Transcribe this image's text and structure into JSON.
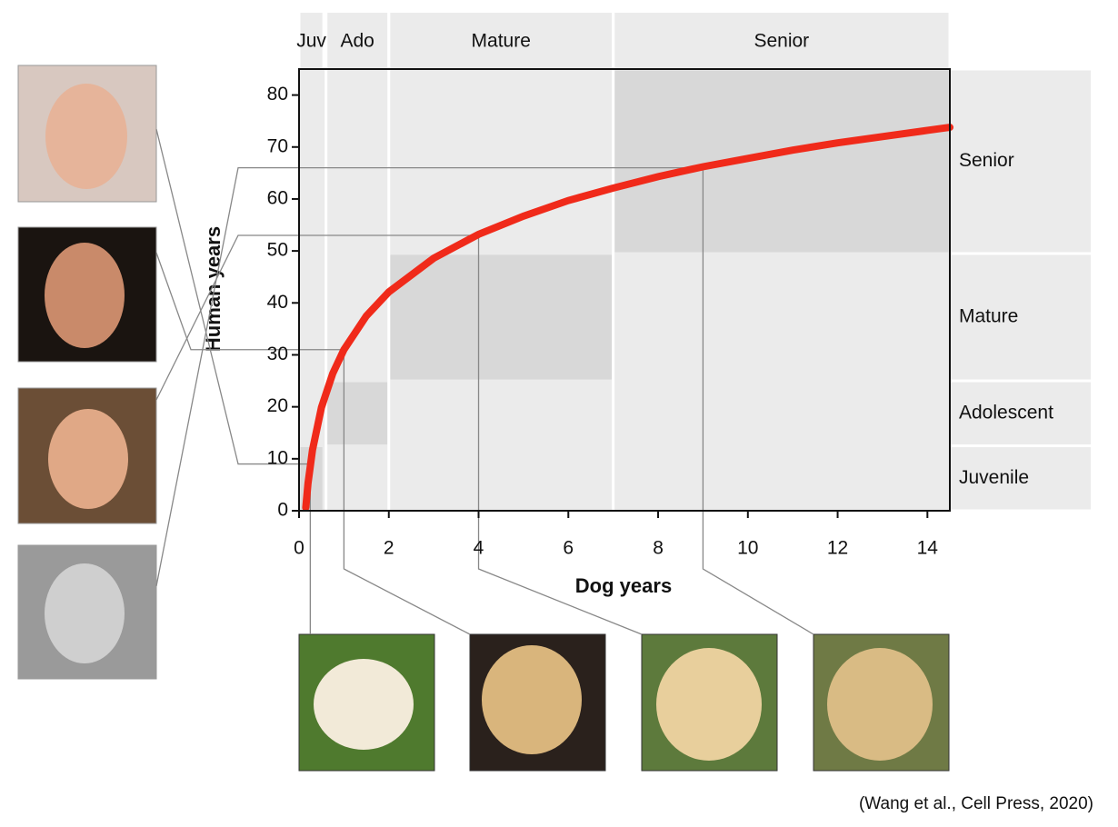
{
  "chart_data": {
    "type": "line",
    "x_label": "Dog years",
    "y_label": "Human years",
    "caption": "(Wang et al., Cell Press, 2020)",
    "x": [
      0.15,
      0.2,
      0.3,
      0.5,
      0.75,
      1,
      1.5,
      2,
      3,
      4,
      5,
      6,
      7,
      8,
      9,
      10,
      11,
      12,
      13,
      14,
      14.5
    ],
    "y": [
      0.6,
      5.3,
      11.7,
      19.9,
      26.4,
      31,
      37.5,
      42.1,
      48.6,
      53.2,
      56.7,
      59.7,
      62.1,
      64.3,
      66.2,
      67.8,
      69.4,
      70.8,
      72.0,
      73.2,
      73.8
    ],
    "color": "#f02a1a",
    "xlim": [
      0,
      14.5
    ],
    "ylim": [
      0,
      85
    ],
    "xticks": [
      0,
      2,
      4,
      6,
      8,
      10,
      12,
      14
    ],
    "yticks": [
      0,
      10,
      20,
      30,
      40,
      50,
      60,
      70,
      80
    ],
    "stages": [
      {
        "short": "Juv",
        "name": "Juvenile",
        "dog_years": [
          0,
          0.55
        ],
        "human_years": [
          0,
          12.5
        ]
      },
      {
        "short": "Ado",
        "name": "Adolescent",
        "dog_years": [
          0.6,
          2
        ],
        "human_years": [
          12.5,
          25
        ]
      },
      {
        "short": "Mature",
        "name": "Mature",
        "dog_years": [
          2,
          7
        ],
        "human_years": [
          25,
          49.5
        ]
      },
      {
        "short": "Senior",
        "name": "Senior",
        "dog_years": [
          7,
          14.5
        ],
        "human_years": [
          49.5,
          85
        ]
      }
    ],
    "reference_points": {
      "x": [
        0.25,
        1,
        4,
        9
      ],
      "y": [
        9,
        31,
        53,
        66
      ]
    }
  }
}
